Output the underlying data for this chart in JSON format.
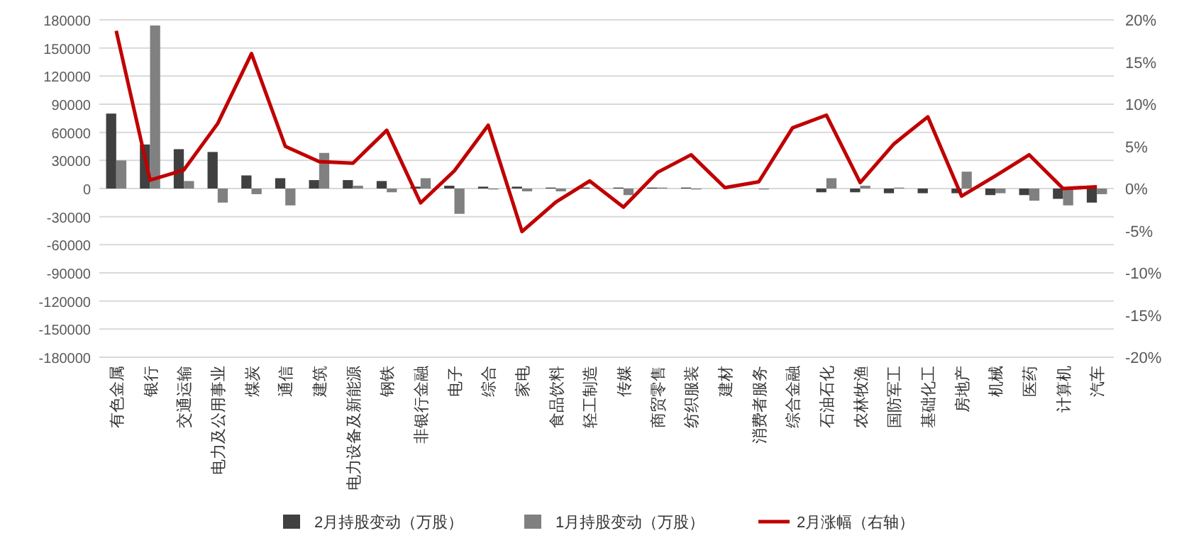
{
  "chart_data": {
    "type": "bar",
    "categories": [
      "有色金属",
      "银行",
      "交通运输",
      "电力及公用事业",
      "煤炭",
      "通信",
      "建筑",
      "电力设备及新能源",
      "钢铁",
      "非银行金融",
      "电子",
      "综合",
      "家电",
      "食品饮料",
      "轻工制造",
      "传媒",
      "商贸零售",
      "纺织服装",
      "建材",
      "消费者服务",
      "综合金融",
      "石油石化",
      "农林牧渔",
      "国防军工",
      "基础化工",
      "房地产",
      "机械",
      "医药",
      "计算机",
      "汽车"
    ],
    "series": [
      {
        "name": "2月持股变动（万股）",
        "color": "#404040",
        "values": [
          80000,
          47000,
          42000,
          39000,
          14000,
          11000,
          9000,
          9000,
          8000,
          2000,
          3000,
          2000,
          2000,
          1000,
          1000,
          1000,
          1000,
          1000,
          0,
          0,
          0,
          -4000,
          -4000,
          -5000,
          -5000,
          -5000,
          -7000,
          -7000,
          -11000,
          -15000
        ]
      },
      {
        "name": "1月持股变动（万股）",
        "color": "#808080",
        "values": [
          30000,
          174000,
          8000,
          -15000,
          -6000,
          -18000,
          38000,
          3000,
          -4000,
          11000,
          -27000,
          -1000,
          -3000,
          -3000,
          null,
          -7000,
          1000,
          -1000,
          0,
          -1000,
          0,
          11000,
          3000,
          1000,
          0,
          18000,
          -5000,
          -13000,
          -18000,
          -6000
        ]
      },
      {
        "name": "2月涨幅（右轴）",
        "color": "#c00000",
        "type": "line",
        "axis": "y2",
        "values": [
          18.7,
          1.0,
          2.2,
          7.7,
          16.0,
          5.0,
          3.2,
          3.0,
          6.9,
          -1.7,
          2.1,
          7.5,
          -5.1,
          -1.6,
          0.9,
          -2.2,
          1.9,
          4.0,
          0.1,
          0.8,
          7.2,
          8.7,
          0.7,
          5.3,
          8.5,
          -0.9,
          1.5,
          4.0,
          0.0,
          0.2
        ]
      }
    ],
    "ylim": [
      -180000,
      180000
    ],
    "yticks": [
      -180000,
      -150000,
      -120000,
      -90000,
      -60000,
      -30000,
      0,
      30000,
      60000,
      90000,
      120000,
      150000,
      180000
    ],
    "y2lim": [
      -20,
      20
    ],
    "y2ticks": [
      {
        "value": -20,
        "label": "-20%"
      },
      {
        "value": -15,
        "label": "-15%"
      },
      {
        "value": -10,
        "label": "-10%"
      },
      {
        "value": -5,
        "label": "-5%"
      },
      {
        "value": 0,
        "label": "0%"
      },
      {
        "value": 5,
        "label": "5%"
      },
      {
        "value": 10,
        "label": "10%"
      },
      {
        "value": 15,
        "label": "15%"
      },
      {
        "value": 20,
        "label": "20%"
      }
    ],
    "grid": "y",
    "legend": "bottom"
  }
}
